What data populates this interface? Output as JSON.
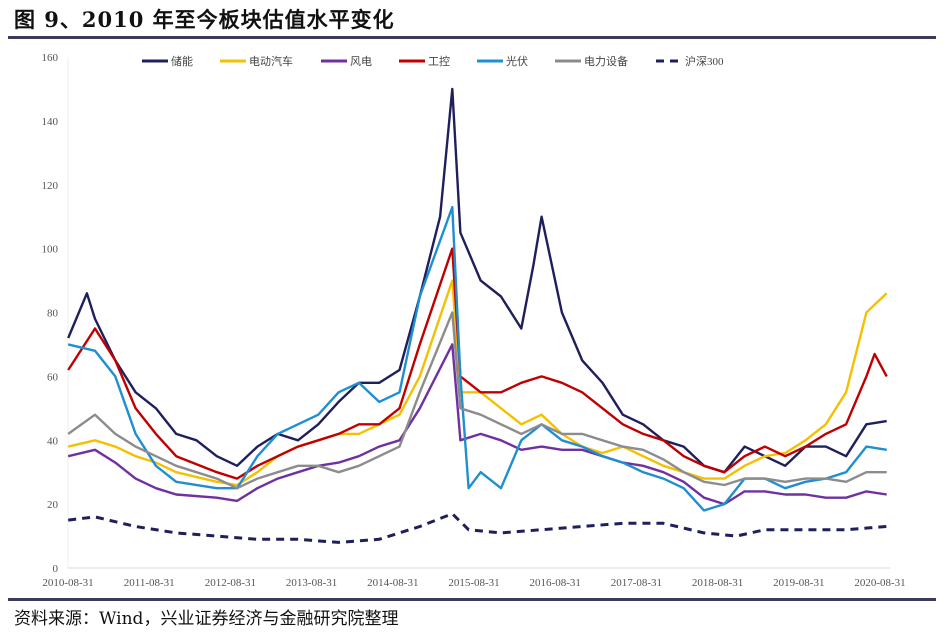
{
  "title": "图 9、2010 年至今板块估值水平变化",
  "source": "资料来源：Wind，兴业证券经济与金融研究院整理",
  "chart_data": {
    "type": "line",
    "title": "图 9、2010 年至今板块估值水平变化",
    "xlabel": "",
    "ylabel": "",
    "ylim": [
      0,
      160
    ],
    "yticks": [
      0,
      20,
      40,
      60,
      80,
      100,
      120,
      140,
      160
    ],
    "xlim": [
      2010.667,
      2020.667
    ],
    "xtick_labels": [
      "2010-08-31",
      "2011-08-31",
      "2012-08-31",
      "2013-08-31",
      "2014-08-31",
      "2015-08-31",
      "2016-08-31",
      "2017-08-31",
      "2018-08-31",
      "2019-08-31",
      "2020-08-31"
    ],
    "legend_position": "top",
    "grid": false,
    "series": [
      {
        "name": "储能",
        "color": "#1f1f5c",
        "dashed": false,
        "points": [
          [
            2010.67,
            72
          ],
          [
            2010.9,
            86
          ],
          [
            2011.0,
            78
          ],
          [
            2011.25,
            65
          ],
          [
            2011.5,
            55
          ],
          [
            2011.75,
            50
          ],
          [
            2012.0,
            42
          ],
          [
            2012.25,
            40
          ],
          [
            2012.5,
            35
          ],
          [
            2012.75,
            32
          ],
          [
            2013.0,
            38
          ],
          [
            2013.25,
            42
          ],
          [
            2013.5,
            40
          ],
          [
            2013.75,
            45
          ],
          [
            2014.0,
            52
          ],
          [
            2014.25,
            58
          ],
          [
            2014.5,
            58
          ],
          [
            2014.75,
            62
          ],
          [
            2015.0,
            85
          ],
          [
            2015.25,
            110
          ],
          [
            2015.4,
            150
          ],
          [
            2015.5,
            105
          ],
          [
            2015.75,
            90
          ],
          [
            2016.0,
            85
          ],
          [
            2016.25,
            75
          ],
          [
            2016.4,
            95
          ],
          [
            2016.5,
            110
          ],
          [
            2016.75,
            80
          ],
          [
            2017.0,
            65
          ],
          [
            2017.25,
            58
          ],
          [
            2017.5,
            48
          ],
          [
            2017.75,
            45
          ],
          [
            2018.0,
            40
          ],
          [
            2018.25,
            38
          ],
          [
            2018.5,
            32
          ],
          [
            2018.75,
            30
          ],
          [
            2019.0,
            38
          ],
          [
            2019.25,
            35
          ],
          [
            2019.5,
            32
          ],
          [
            2019.75,
            38
          ],
          [
            2020.0,
            38
          ],
          [
            2020.25,
            35
          ],
          [
            2020.5,
            45
          ],
          [
            2020.75,
            46
          ]
        ]
      },
      {
        "name": "电动汽车",
        "color": "#f5c000",
        "dashed": false,
        "points": [
          [
            2010.67,
            38
          ],
          [
            2011.0,
            40
          ],
          [
            2011.25,
            38
          ],
          [
            2011.5,
            35
          ],
          [
            2011.75,
            33
          ],
          [
            2012.0,
            30
          ],
          [
            2012.5,
            27
          ],
          [
            2012.75,
            26
          ],
          [
            2013.0,
            30
          ],
          [
            2013.25,
            35
          ],
          [
            2013.5,
            38
          ],
          [
            2013.75,
            40
          ],
          [
            2014.0,
            42
          ],
          [
            2014.25,
            42
          ],
          [
            2014.5,
            45
          ],
          [
            2014.75,
            48
          ],
          [
            2015.0,
            60
          ],
          [
            2015.4,
            90
          ],
          [
            2015.5,
            55
          ],
          [
            2015.75,
            55
          ],
          [
            2016.0,
            50
          ],
          [
            2016.25,
            45
          ],
          [
            2016.5,
            48
          ],
          [
            2016.75,
            42
          ],
          [
            2017.0,
            38
          ],
          [
            2017.25,
            36
          ],
          [
            2017.5,
            38
          ],
          [
            2017.75,
            35
          ],
          [
            2018.0,
            32
          ],
          [
            2018.25,
            30
          ],
          [
            2018.5,
            28
          ],
          [
            2018.75,
            28
          ],
          [
            2019.0,
            32
          ],
          [
            2019.25,
            35
          ],
          [
            2019.5,
            36
          ],
          [
            2019.75,
            40
          ],
          [
            2020.0,
            45
          ],
          [
            2020.25,
            55
          ],
          [
            2020.5,
            80
          ],
          [
            2020.75,
            86
          ]
        ]
      },
      {
        "name": "风电",
        "color": "#7030a0",
        "dashed": false,
        "points": [
          [
            2010.67,
            35
          ],
          [
            2011.0,
            37
          ],
          [
            2011.25,
            33
          ],
          [
            2011.5,
            28
          ],
          [
            2011.75,
            25
          ],
          [
            2012.0,
            23
          ],
          [
            2012.5,
            22
          ],
          [
            2012.75,
            21
          ],
          [
            2013.0,
            25
          ],
          [
            2013.25,
            28
          ],
          [
            2013.5,
            30
          ],
          [
            2013.75,
            32
          ],
          [
            2014.0,
            33
          ],
          [
            2014.25,
            35
          ],
          [
            2014.5,
            38
          ],
          [
            2014.75,
            40
          ],
          [
            2015.0,
            50
          ],
          [
            2015.4,
            70
          ],
          [
            2015.5,
            40
          ],
          [
            2015.75,
            42
          ],
          [
            2016.0,
            40
          ],
          [
            2016.25,
            37
          ],
          [
            2016.5,
            38
          ],
          [
            2016.75,
            37
          ],
          [
            2017.0,
            37
          ],
          [
            2017.25,
            35
          ],
          [
            2017.5,
            33
          ],
          [
            2017.75,
            32
          ],
          [
            2018.0,
            30
          ],
          [
            2018.25,
            27
          ],
          [
            2018.5,
            22
          ],
          [
            2018.75,
            20
          ],
          [
            2019.0,
            24
          ],
          [
            2019.25,
            24
          ],
          [
            2019.5,
            23
          ],
          [
            2019.75,
            23
          ],
          [
            2020.0,
            22
          ],
          [
            2020.25,
            22
          ],
          [
            2020.5,
            24
          ],
          [
            2020.75,
            23
          ]
        ]
      },
      {
        "name": "工控",
        "color": "#c00000",
        "dashed": false,
        "points": [
          [
            2010.67,
            62
          ],
          [
            2011.0,
            75
          ],
          [
            2011.25,
            65
          ],
          [
            2011.5,
            50
          ],
          [
            2011.75,
            42
          ],
          [
            2012.0,
            35
          ],
          [
            2012.5,
            30
          ],
          [
            2012.75,
            28
          ],
          [
            2013.0,
            32
          ],
          [
            2013.25,
            35
          ],
          [
            2013.5,
            38
          ],
          [
            2013.75,
            40
          ],
          [
            2014.0,
            42
          ],
          [
            2014.25,
            45
          ],
          [
            2014.5,
            45
          ],
          [
            2014.75,
            50
          ],
          [
            2015.0,
            70
          ],
          [
            2015.4,
            100
          ],
          [
            2015.5,
            60
          ],
          [
            2015.75,
            55
          ],
          [
            2016.0,
            55
          ],
          [
            2016.25,
            58
          ],
          [
            2016.5,
            60
          ],
          [
            2016.75,
            58
          ],
          [
            2017.0,
            55
          ],
          [
            2017.25,
            50
          ],
          [
            2017.5,
            45
          ],
          [
            2017.75,
            42
          ],
          [
            2018.0,
            40
          ],
          [
            2018.25,
            35
          ],
          [
            2018.5,
            32
          ],
          [
            2018.75,
            30
          ],
          [
            2019.0,
            35
          ],
          [
            2019.25,
            38
          ],
          [
            2019.5,
            35
          ],
          [
            2019.75,
            38
          ],
          [
            2020.0,
            42
          ],
          [
            2020.25,
            45
          ],
          [
            2020.5,
            60
          ],
          [
            2020.6,
            67
          ],
          [
            2020.75,
            60
          ]
        ]
      },
      {
        "name": "光伏",
        "color": "#1f8fd0",
        "dashed": false,
        "points": [
          [
            2010.67,
            70
          ],
          [
            2011.0,
            68
          ],
          [
            2011.25,
            60
          ],
          [
            2011.5,
            42
          ],
          [
            2011.75,
            32
          ],
          [
            2012.0,
            27
          ],
          [
            2012.5,
            25
          ],
          [
            2012.75,
            25
          ],
          [
            2013.0,
            35
          ],
          [
            2013.25,
            42
          ],
          [
            2013.5,
            45
          ],
          [
            2013.75,
            48
          ],
          [
            2014.0,
            55
          ],
          [
            2014.25,
            58
          ],
          [
            2014.5,
            52
          ],
          [
            2014.75,
            55
          ],
          [
            2015.0,
            85
          ],
          [
            2015.4,
            113
          ],
          [
            2015.5,
            60
          ],
          [
            2015.6,
            25
          ],
          [
            2015.75,
            30
          ],
          [
            2016.0,
            25
          ],
          [
            2016.25,
            40
          ],
          [
            2016.5,
            45
          ],
          [
            2016.75,
            40
          ],
          [
            2017.0,
            38
          ],
          [
            2017.25,
            35
          ],
          [
            2017.5,
            33
          ],
          [
            2017.75,
            30
          ],
          [
            2018.0,
            28
          ],
          [
            2018.25,
            25
          ],
          [
            2018.5,
            18
          ],
          [
            2018.75,
            20
          ],
          [
            2019.0,
            28
          ],
          [
            2019.25,
            28
          ],
          [
            2019.5,
            25
          ],
          [
            2019.75,
            27
          ],
          [
            2020.0,
            28
          ],
          [
            2020.25,
            30
          ],
          [
            2020.5,
            38
          ],
          [
            2020.75,
            37
          ]
        ]
      },
      {
        "name": "电力设备",
        "color": "#8c8c8c",
        "dashed": false,
        "points": [
          [
            2010.67,
            42
          ],
          [
            2011.0,
            48
          ],
          [
            2011.25,
            42
          ],
          [
            2011.5,
            38
          ],
          [
            2011.75,
            35
          ],
          [
            2012.0,
            32
          ],
          [
            2012.5,
            28
          ],
          [
            2012.75,
            25
          ],
          [
            2013.0,
            28
          ],
          [
            2013.25,
            30
          ],
          [
            2013.5,
            32
          ],
          [
            2013.75,
            32
          ],
          [
            2014.0,
            30
          ],
          [
            2014.25,
            32
          ],
          [
            2014.5,
            35
          ],
          [
            2014.75,
            38
          ],
          [
            2015.0,
            55
          ],
          [
            2015.4,
            80
          ],
          [
            2015.5,
            50
          ],
          [
            2015.75,
            48
          ],
          [
            2016.0,
            45
          ],
          [
            2016.25,
            42
          ],
          [
            2016.5,
            45
          ],
          [
            2016.75,
            42
          ],
          [
            2017.0,
            42
          ],
          [
            2017.25,
            40
          ],
          [
            2017.5,
            38
          ],
          [
            2017.75,
            37
          ],
          [
            2018.0,
            34
          ],
          [
            2018.25,
            30
          ],
          [
            2018.5,
            27
          ],
          [
            2018.75,
            26
          ],
          [
            2019.0,
            28
          ],
          [
            2019.25,
            28
          ],
          [
            2019.5,
            27
          ],
          [
            2019.75,
            28
          ],
          [
            2020.0,
            28
          ],
          [
            2020.25,
            27
          ],
          [
            2020.5,
            30
          ],
          [
            2020.75,
            30
          ]
        ]
      },
      {
        "name": "沪深300",
        "color": "#1f1f5c",
        "dashed": true,
        "points": [
          [
            2010.67,
            15
          ],
          [
            2011.0,
            16
          ],
          [
            2011.5,
            13
          ],
          [
            2012.0,
            11
          ],
          [
            2012.5,
            10
          ],
          [
            2013.0,
            9
          ],
          [
            2013.5,
            9
          ],
          [
            2014.0,
            8
          ],
          [
            2014.5,
            9
          ],
          [
            2015.0,
            13
          ],
          [
            2015.4,
            17
          ],
          [
            2015.6,
            12
          ],
          [
            2016.0,
            11
          ],
          [
            2016.5,
            12
          ],
          [
            2017.0,
            13
          ],
          [
            2017.5,
            14
          ],
          [
            2018.0,
            14
          ],
          [
            2018.5,
            11
          ],
          [
            2018.9,
            10
          ],
          [
            2019.25,
            12
          ],
          [
            2019.75,
            12
          ],
          [
            2020.25,
            12
          ],
          [
            2020.75,
            13
          ]
        ]
      }
    ]
  }
}
